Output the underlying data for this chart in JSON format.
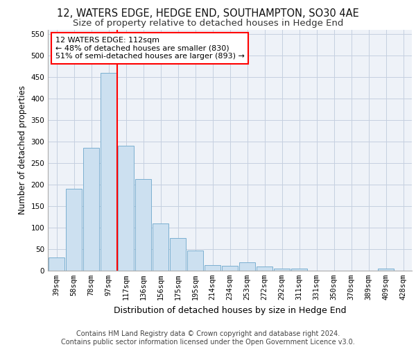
{
  "title1": "12, WATERS EDGE, HEDGE END, SOUTHAMPTON, SO30 4AE",
  "title2": "Size of property relative to detached houses in Hedge End",
  "xlabel": "Distribution of detached houses by size in Hedge End",
  "ylabel": "Number of detached properties",
  "footer1": "Contains HM Land Registry data © Crown copyright and database right 2024.",
  "footer2": "Contains public sector information licensed under the Open Government Licence v3.0.",
  "bar_labels": [
    "39sqm",
    "58sqm",
    "78sqm",
    "97sqm",
    "117sqm",
    "136sqm",
    "156sqm",
    "175sqm",
    "195sqm",
    "214sqm",
    "234sqm",
    "253sqm",
    "272sqm",
    "292sqm",
    "311sqm",
    "331sqm",
    "350sqm",
    "370sqm",
    "389sqm",
    "409sqm",
    "428sqm"
  ],
  "bar_values": [
    30,
    190,
    285,
    460,
    290,
    213,
    110,
    75,
    47,
    13,
    12,
    20,
    9,
    5,
    5,
    0,
    0,
    0,
    0,
    5,
    0
  ],
  "bar_color": "#cce0f0",
  "bar_edge_color": "#7aafd0",
  "vline_x_index": 4,
  "vline_color": "red",
  "annotation_text": "12 WATERS EDGE: 112sqm\n← 48% of detached houses are smaller (830)\n51% of semi-detached houses are larger (893) →",
  "annotation_box_color": "white",
  "annotation_box_edge": "red",
  "ylim": [
    0,
    560
  ],
  "yticks": [
    0,
    50,
    100,
    150,
    200,
    250,
    300,
    350,
    400,
    450,
    500,
    550
  ],
  "background_color": "#eef2f8",
  "grid_color": "#c5cfe0",
  "title1_fontsize": 10.5,
  "title2_fontsize": 9.5,
  "xlabel_fontsize": 9,
  "ylabel_fontsize": 8.5,
  "tick_fontsize": 7.5,
  "footer_fontsize": 7,
  "annot_fontsize": 8
}
